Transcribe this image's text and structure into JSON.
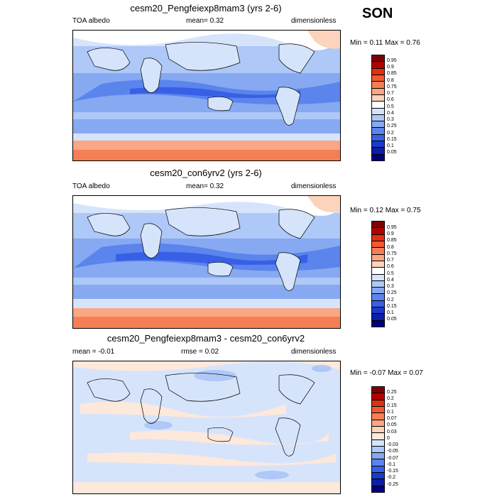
{
  "season": "SON",
  "panels": [
    {
      "title": "cesm20_Pengfeiexp8mam3 (yrs 2-6)",
      "left_label": "TOA albedo",
      "mid_label": "mean=   0.32",
      "right_label": "dimensionless",
      "minmax": "Min =   0.11 Max =   0.76",
      "levels": [
        "0.95",
        "0.9",
        "0.85",
        "0.8",
        "0.75",
        "0.7",
        "0.6",
        "0.5",
        "0.4",
        "0.3",
        "0.25",
        "0.2",
        "0.15",
        "0.1",
        "0.05"
      ],
      "colors": [
        "#7f0000",
        "#b30000",
        "#e03010",
        "#f05a30",
        "#f57f55",
        "#fba784",
        "#fcd3bc",
        "#ffffff",
        "#d6e4fb",
        "#aec8f7",
        "#86a9f2",
        "#5b84ec",
        "#3860e6",
        "#1a3acc",
        "#0c1ea6",
        "#000080"
      ]
    },
    {
      "title": "cesm20_con6yrv2 (yrs 2-6)",
      "left_label": "TOA albedo",
      "mid_label": "mean=   0.32",
      "right_label": "dimensionless",
      "minmax": "Min =   0.12 Max =   0.75",
      "levels": [
        "0.95",
        "0.9",
        "0.85",
        "0.8",
        "0.75",
        "0.7",
        "0.6",
        "0.5",
        "0.4",
        "0.3",
        "0.25",
        "0.2",
        "0.15",
        "0.1",
        "0.05"
      ],
      "colors": [
        "#7f0000",
        "#b30000",
        "#e03010",
        "#f05a30",
        "#f57f55",
        "#fba784",
        "#fcd3bc",
        "#ffffff",
        "#d6e4fb",
        "#aec8f7",
        "#86a9f2",
        "#5b84ec",
        "#3860e6",
        "#1a3acc",
        "#0c1ea6",
        "#000080"
      ]
    },
    {
      "title": "cesm20_Pengfeiexp8mam3 - cesm20_con6yrv2",
      "left_label": "mean =  -0.01",
      "mid_label": "rmse =   0.02",
      "right_label": "dimensionless",
      "minmax": "Min =  -0.07 Max =   0.07",
      "levels": [
        "0.25",
        "0.2",
        "0.15",
        "0.1",
        "0.07",
        "0.05",
        "0.03",
        "0",
        "-0.03",
        "-0.05",
        "-0.07",
        "-0.1",
        "-0.15",
        "-0.2",
        "-0.25"
      ],
      "colors": [
        "#7f0000",
        "#b30000",
        "#e03010",
        "#f05a30",
        "#f57f55",
        "#fba784",
        "#fcd3bc",
        "#fde8dc",
        "#d6e4fb",
        "#aec8f7",
        "#86a9f2",
        "#5b84ec",
        "#3860e6",
        "#1a3acc",
        "#0c1ea6",
        "#000080"
      ]
    }
  ]
}
